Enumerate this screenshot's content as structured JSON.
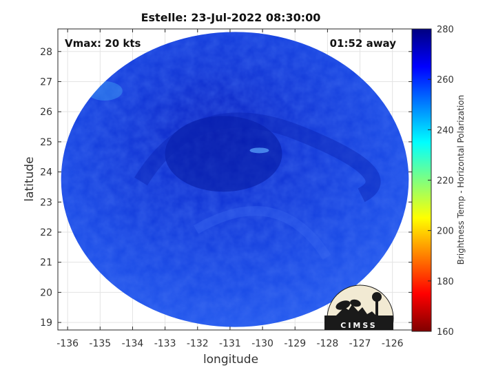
{
  "chart_data": {
    "type": "heatmap",
    "title": "Estelle: 23-Jul-2022 08:30:00",
    "xlabel": "longitude",
    "ylabel": "latitude",
    "xlim": [
      -136.3,
      -125.4
    ],
    "ylim": [
      18.75,
      28.75
    ],
    "x_ticks": [
      -136,
      -135,
      -134,
      -133,
      -132,
      -131,
      -130,
      -129,
      -128,
      -127,
      -126
    ],
    "y_ticks": [
      19,
      20,
      21,
      22,
      23,
      24,
      25,
      26,
      27,
      28
    ],
    "grid": true,
    "annotations": {
      "left": "Vmax: 20 kts",
      "right": "01:52 away"
    },
    "swath": {
      "center_lon": -130.85,
      "center_lat": 23.75,
      "storm_center_lon": -131.2,
      "storm_center_lat": 24.6,
      "typical_value": 262,
      "coldest_value": 248
    },
    "colorbar": {
      "label": "Brightness Temp - Horizontal Polarization",
      "range": [
        160,
        280
      ],
      "ticks": [
        160,
        180,
        200,
        220,
        240,
        260,
        280
      ],
      "colormap": "jet"
    },
    "logo": {
      "text": "CIMSS"
    }
  }
}
